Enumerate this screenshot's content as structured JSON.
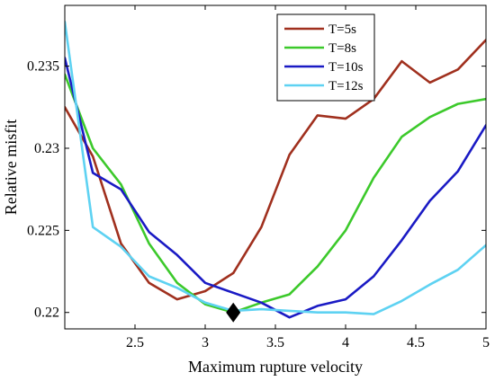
{
  "chart_data": {
    "type": "line",
    "xlabel": "Maximum rupture velocity",
    "ylabel": "Relative misfit",
    "xlim": [
      2.0,
      5.0
    ],
    "ylim": [
      0.219,
      0.2387
    ],
    "xticks": [
      2.5,
      3,
      3.5,
      4,
      4.5,
      5
    ],
    "xtick_labels": [
      "2.5",
      "3",
      "3.5",
      "4",
      "4.5",
      "5"
    ],
    "yticks": [
      0.22,
      0.225,
      0.23,
      0.235
    ],
    "ytick_labels": [
      "0.22",
      "0.225",
      "0.23",
      "0.235"
    ],
    "grid": false,
    "legend_position": "top-right",
    "x": [
      2.0,
      2.2,
      2.4,
      2.6,
      2.8,
      3.0,
      3.2,
      3.4,
      3.6,
      3.8,
      4.0,
      4.2,
      4.4,
      4.6,
      4.8,
      5.0
    ],
    "series": [
      {
        "name": "T=5s",
        "color": "#a0301e",
        "values": [
          0.2325,
          0.2295,
          0.2242,
          0.2218,
          0.2208,
          0.2213,
          0.2224,
          0.2252,
          0.2296,
          0.232,
          0.2318,
          0.233,
          0.2353,
          0.234,
          0.2348,
          0.2366
        ]
      },
      {
        "name": "T=8s",
        "color": "#3cc92b",
        "values": [
          0.2345,
          0.23,
          0.2278,
          0.2242,
          0.2218,
          0.2205,
          0.22,
          0.2206,
          0.2211,
          0.2228,
          0.225,
          0.2282,
          0.2307,
          0.2319,
          0.2327,
          0.233
        ]
      },
      {
        "name": "T=10s",
        "color": "#1a1ac4",
        "values": [
          0.2355,
          0.2285,
          0.2275,
          0.2249,
          0.2235,
          0.2218,
          0.2212,
          0.2206,
          0.2197,
          0.2204,
          0.2208,
          0.2222,
          0.2244,
          0.2268,
          0.2286,
          0.2314
        ]
      },
      {
        "name": "T=12s",
        "color": "#5ed2f2",
        "values": [
          0.2377,
          0.2252,
          0.224,
          0.2222,
          0.2215,
          0.2206,
          0.2201,
          0.2202,
          0.2201,
          0.22,
          0.22,
          0.2199,
          0.2207,
          0.2217,
          0.2226,
          0.2241
        ]
      }
    ],
    "optimum_marker": {
      "shape": "diamond",
      "x": 3.2,
      "y": 0.22,
      "color": "#000000"
    }
  }
}
